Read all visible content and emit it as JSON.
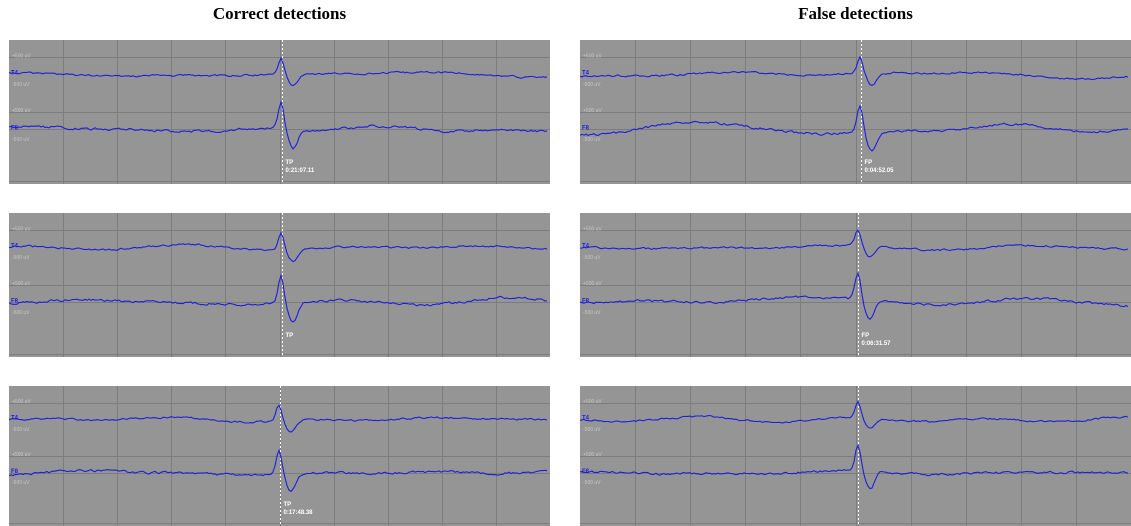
{
  "columns": [
    {
      "title": "Correct detections",
      "panels": [
        {
          "markers": [
            {
              "channel": "T4",
              "upper": "+500 uV",
              "lower": "-500 uV"
            },
            {
              "channel": "F8",
              "upper": "+500 uV",
              "lower": "-500 uV"
            }
          ],
          "label": "TP",
          "time": "0:21:07.11"
        },
        {
          "markers": [
            {
              "channel": "T4",
              "upper": "+500 uV",
              "lower": "-500 uV"
            },
            {
              "channel": "F8",
              "upper": "+500 uV",
              "lower": "-500 uV"
            }
          ],
          "label": "TP",
          "time": ""
        },
        {
          "markers": [
            {
              "channel": "T4",
              "upper": "+500 uV",
              "lower": "-500 uV"
            },
            {
              "channel": "F8",
              "upper": "+500 uV",
              "lower": "-500 uV"
            }
          ],
          "label": "TP",
          "time": "0:17:48.38"
        }
      ]
    },
    {
      "title": "False detections",
      "panels": [
        {
          "markers": [
            {
              "channel": "T4",
              "upper": "+500 uV",
              "lower": "-500 uV"
            },
            {
              "channel": "F8",
              "upper": "+500 uV",
              "lower": "-500 uV"
            }
          ],
          "label": "FP",
          "time": "0:04:52.05"
        },
        {
          "markers": [
            {
              "channel": "T4",
              "upper": "+500 uV",
              "lower": "-500 uV"
            },
            {
              "channel": "F8",
              "upper": "+500 uV",
              "lower": "-500 uV"
            }
          ],
          "label": "FP",
          "time": "0:06:31.57"
        },
        {
          "markers": [
            {
              "channel": "T4",
              "upper": "+500 uV",
              "lower": "-500 uV"
            },
            {
              "channel": "F8",
              "upper": "+500 uV",
              "lower": "-500 uV"
            }
          ],
          "label": "",
          "time": ""
        }
      ]
    }
  ],
  "colors": {
    "panel_bg": "#959595",
    "grid": "#7d7d7d",
    "trace": "#1e1edc",
    "marker_line": "#ffffff",
    "annotation": "#ffffff",
    "scale_text": "#c8c8c8"
  }
}
